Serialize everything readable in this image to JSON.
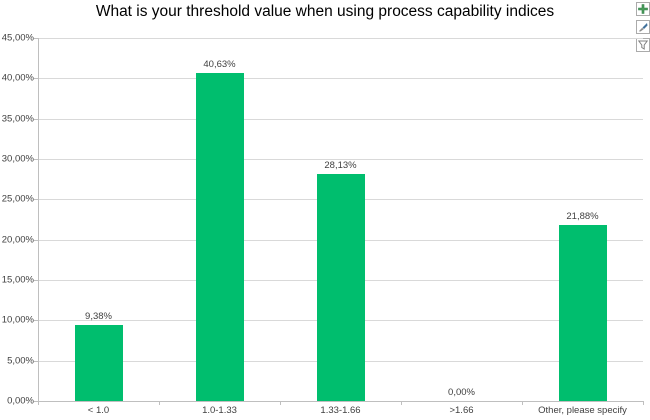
{
  "title": "What is your threshold value when using process capability indices",
  "toolbar": {
    "buttons": [
      {
        "name": "chart-elements-button",
        "icon": "plus-icon"
      },
      {
        "name": "chart-styles-button",
        "icon": "paintbrush-icon"
      },
      {
        "name": "chart-filters-button",
        "icon": "funnel-icon"
      }
    ]
  },
  "chart_data": {
    "type": "bar",
    "title": "What is your threshold value when using process capability indices",
    "categories": [
      "< 1.0",
      "1.0-1.33",
      "1.33-1.66",
      ">1.66",
      "Other, please specify"
    ],
    "values": [
      9.38,
      40.63,
      28.13,
      0.0,
      21.88
    ],
    "data_labels": [
      "9,38%",
      "40,63%",
      "28,13%",
      "0,00%",
      "21,88%"
    ],
    "xlabel": "",
    "ylabel": "",
    "ylim": [
      0,
      45
    ],
    "y_tick_step": 5,
    "y_tick_labels": [
      "0,00%",
      "5,00%",
      "10,00%",
      "15,00%",
      "20,00%",
      "25,00%",
      "30,00%",
      "35,00%",
      "40,00%",
      "45,00%"
    ],
    "grid": true,
    "legend": "none",
    "bar_color": "#00be6e",
    "gridline_color": "#d9d9d9",
    "axis_color": "#bfbfbf",
    "text_color": "#404040"
  }
}
